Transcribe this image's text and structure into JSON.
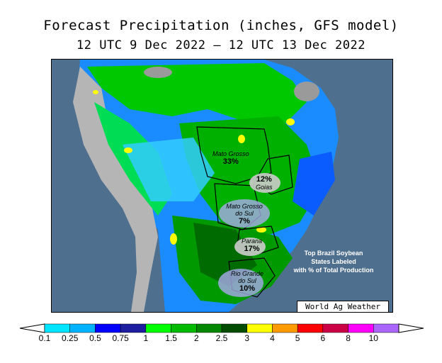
{
  "header": {
    "title": "Forecast Precipitation (inches, GFS model)",
    "subtitle": "12 UTC 9 Dec 2022 — 12 UTC 13 Dec 2022"
  },
  "map": {
    "region": "South America",
    "ocean_color": "#4f6f8f",
    "states": [
      {
        "name": "Mato Grosso",
        "share": "33%"
      },
      {
        "name": "Goias",
        "share": "12%"
      },
      {
        "name": "Mato Grosso do Sul",
        "share": "7%"
      },
      {
        "name": "Parana",
        "share": "17%"
      },
      {
        "name": "Rio Grande do Sul",
        "share": "10%"
      }
    ],
    "note_lines": [
      "Top Brazil Soybean",
      "States Labeled",
      "with % of Total Production"
    ],
    "credit": "World Ag Weather"
  },
  "colorbar": {
    "ticks": [
      "0.1",
      "0.25",
      "0.5",
      "0.75",
      "1",
      "1.5",
      "2",
      "2.5",
      "3",
      "4",
      "5",
      "6",
      "8",
      "10"
    ],
    "colors": [
      "#00e5ff",
      "#00b2ff",
      "#0000ff",
      "#1e1ea0",
      "#00ff00",
      "#00bb00",
      "#008800",
      "#004c00",
      "#ffff00",
      "#ff9a00",
      "#ff0000",
      "#cc0044",
      "#ff00ff",
      "#aa66ff"
    ]
  }
}
